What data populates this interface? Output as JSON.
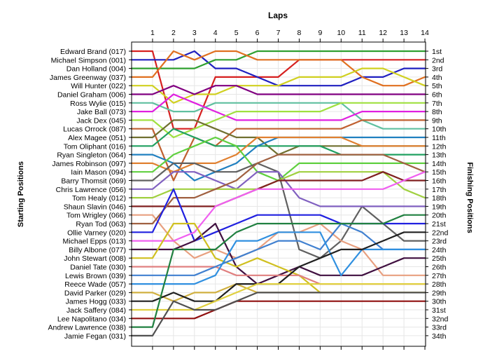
{
  "chart_data": {
    "type": "line",
    "title": "Laps",
    "ylabel_left": "Starting Positions",
    "ylabel_right": "Finishing Positions",
    "laps": [
      1,
      2,
      3,
      4,
      5,
      6,
      7,
      8,
      9,
      10,
      11,
      12,
      13,
      14
    ],
    "drivers": [
      "Edward Brand (017)",
      "Michael Simpson (001)",
      "Dan Holland (004)",
      "James Greenway (037)",
      "Will Hunter (022)",
      "Daniel Graham (006)",
      "Ross Wylie (015)",
      "Jake Ball (073)",
      "Jack Dex (045)",
      "Lucas Orrock (087)",
      "Alex Magee (051)",
      "Tom Oliphant (016)",
      "Ryan Singleton (064)",
      "James Robinson (097)",
      "Iain Mason (094)",
      "Barry Thomsit (069)",
      "Chris Lawrence (056)",
      "Tom Healy (012)",
      "Shaun Slavin (046)",
      "Tom Wrigley (066)",
      "Ryan Tod (063)",
      "Ollie Varney (020)",
      "Michael Epps (013)",
      "Billy Albone (077)",
      "John Stewart (008)",
      "Daniel Tate (030)",
      "Lewis Brown (039)",
      "Reece Wade (057)",
      "David Parker (029)",
      "James Hogg (033)",
      "Jack Saffery (084)",
      "Lee Napolitano (034)",
      "Andrew Lawrence (038)",
      "Jamie Fegan (031)"
    ],
    "finishing_positions": [
      "1st",
      "2nd",
      "3rd",
      "4th",
      "5th",
      "6th",
      "7th",
      "8th",
      "9th",
      "10th",
      "11th",
      "12th",
      "13th",
      "14th",
      "15th",
      "16th",
      "17th",
      "18th",
      "19th",
      "20th",
      "21st",
      "22nd",
      "23rd",
      "24th",
      "25th",
      "26th",
      "27th",
      "28th",
      "29th",
      "30th",
      "31st",
      "32nd",
      "33rd",
      "34th"
    ],
    "series": [
      {
        "color": "#d62020",
        "positions": [
          1,
          10,
          10,
          4,
          4,
          4,
          4,
          2,
          2,
          2,
          2,
          2,
          2,
          2
        ]
      },
      {
        "color": "#2020c0",
        "positions": [
          2,
          2,
          1,
          3,
          3,
          4,
          5,
          5,
          5,
          5,
          4,
          4,
          3,
          3
        ]
      },
      {
        "color": "#30a030",
        "positions": [
          3,
          3,
          3,
          2,
          2,
          1,
          1,
          1,
          1,
          1,
          1,
          1,
          1,
          1
        ]
      },
      {
        "color": "#e07020",
        "positions": [
          4,
          1,
          2,
          1,
          1,
          2,
          2,
          2,
          2,
          2,
          4,
          5,
          5,
          4
        ]
      },
      {
        "color": "#d0d020",
        "positions": [
          5,
          7,
          6,
          6,
          5,
          5,
          5,
          4,
          4,
          4,
          3,
          3,
          4,
          5
        ]
      },
      {
        "color": "#800080",
        "positions": [
          6,
          5,
          6,
          5,
          5,
          6,
          6,
          6,
          6,
          6,
          6,
          6,
          6,
          6
        ]
      },
      {
        "color": "#60c0a0",
        "positions": [
          7,
          8,
          8,
          7,
          7,
          7,
          7,
          7,
          7,
          7,
          9,
          10,
          10,
          10
        ]
      },
      {
        "color": "#e020e0",
        "positions": [
          8,
          6,
          7,
          8,
          9,
          9,
          9,
          9,
          9,
          9,
          8,
          8,
          8,
          8
        ]
      },
      {
        "color": "#a0e040",
        "positions": [
          9,
          11,
          10,
          9,
          8,
          8,
          8,
          8,
          8,
          7,
          7,
          7,
          7,
          7
        ]
      },
      {
        "color": "#c06030",
        "positions": [
          10,
          16,
          11,
          12,
          10,
          10,
          10,
          10,
          10,
          10,
          9,
          9,
          9,
          9
        ]
      },
      {
        "color": "#707030",
        "positions": [
          11,
          9,
          9,
          10,
          11,
          11,
          13,
          12,
          12,
          12,
          12,
          12,
          12,
          12
        ]
      },
      {
        "color": "#20a060",
        "positions": [
          12,
          10,
          11,
          12,
          12,
          12,
          12,
          12,
          12,
          13,
          13,
          13,
          13,
          13
        ]
      },
      {
        "color": "#2080c0",
        "positions": [
          13,
          14,
          16,
          15,
          14,
          12,
          11,
          11,
          11,
          11,
          11,
          11,
          11,
          11
        ]
      },
      {
        "color": "#e08030",
        "positions": [
          14,
          15,
          14,
          14,
          13,
          11,
          11,
          11,
          11,
          11,
          12,
          12,
          12,
          12
        ]
      },
      {
        "color": "#60d040",
        "positions": [
          15,
          13,
          12,
          11,
          12,
          15,
          16,
          14,
          14,
          14,
          14,
          14,
          14,
          14
        ]
      },
      {
        "color": "#606060",
        "positions": [
          16,
          14,
          14,
          15,
          15,
          14,
          15,
          24,
          25,
          23,
          19,
          21,
          23,
          23
        ]
      },
      {
        "color": "#8060c0",
        "positions": [
          17,
          15,
          15,
          16,
          17,
          15,
          15,
          18,
          19,
          19,
          19,
          19,
          19,
          19
        ]
      },
      {
        "color": "#a0d040",
        "positions": [
          18,
          17,
          17,
          17,
          17,
          17,
          16,
          15,
          15,
          15,
          15,
          15,
          17,
          18
        ]
      },
      {
        "color": "#802020",
        "positions": [
          19,
          19,
          19,
          19,
          18,
          17,
          16,
          16,
          16,
          16,
          16,
          15,
          16,
          16
        ]
      },
      {
        "color": "#e8a080",
        "positions": [
          20,
          23,
          25,
          24,
          25,
          24,
          22,
          22,
          21,
          23,
          24,
          27,
          27,
          27
        ]
      },
      {
        "color": "#a06040",
        "positions": [
          21,
          18,
          18,
          17,
          16,
          14,
          13,
          13,
          13,
          13,
          13,
          13,
          14,
          15
        ]
      },
      {
        "color": "#2020e0",
        "positions": [
          22,
          17,
          23,
          22,
          21,
          20,
          20,
          20,
          20,
          21,
          21,
          21,
          21,
          21
        ]
      },
      {
        "color": "#f060f0",
        "positions": [
          23,
          23,
          22,
          19,
          18,
          17,
          17,
          17,
          17,
          17,
          17,
          17,
          16,
          15
        ]
      },
      {
        "color": "#401040",
        "positions": [
          24,
          24,
          23,
          21,
          26,
          28,
          27,
          26,
          27,
          27,
          27,
          26,
          25,
          25
        ]
      },
      {
        "color": "#d0c020",
        "positions": [
          25,
          21,
          21,
          25,
          26,
          25,
          26,
          27,
          29,
          29,
          29,
          29,
          29,
          29
        ]
      },
      {
        "color": "#e08080",
        "positions": [
          26,
          26,
          26,
          26,
          27,
          27,
          27,
          27,
          28,
          28,
          28,
          28,
          28,
          28
        ]
      },
      {
        "color": "#4080d0",
        "positions": [
          27,
          27,
          27,
          26,
          25,
          24,
          23,
          23,
          24,
          21,
          22,
          24,
          24,
          24
        ]
      },
      {
        "color": "#3090e0",
        "positions": [
          28,
          28,
          28,
          27,
          23,
          23,
          22,
          22,
          22,
          27,
          24,
          24,
          24,
          24
        ]
      },
      {
        "color": "#d0b040",
        "positions": [
          29,
          30,
          29,
          29,
          28,
          29,
          29,
          29,
          29,
          29,
          29,
          29,
          29,
          29
        ]
      },
      {
        "color": "#202020",
        "positions": [
          30,
          29,
          30,
          30,
          28,
          28,
          28,
          26,
          25,
          24,
          24,
          23,
          22,
          22
        ]
      },
      {
        "color": "#e0d040",
        "positions": [
          31,
          31,
          31,
          30,
          29,
          28,
          28,
          28,
          28,
          28,
          28,
          28,
          28,
          28
        ]
      },
      {
        "color": "#901010",
        "positions": [
          32,
          32,
          32,
          31,
          30,
          30,
          30,
          30,
          30,
          30,
          30,
          30,
          30,
          30
        ]
      },
      {
        "color": "#208040",
        "positions": [
          33,
          24,
          24,
          24,
          22,
          21,
          21,
          21,
          21,
          21,
          21,
          21,
          20,
          20
        ]
      },
      {
        "color": "#505050",
        "positions": [
          34,
          30,
          31,
          31,
          30,
          29,
          29,
          29,
          29,
          29,
          29,
          29,
          29,
          29
        ]
      }
    ],
    "grid": true,
    "legend": "none"
  }
}
